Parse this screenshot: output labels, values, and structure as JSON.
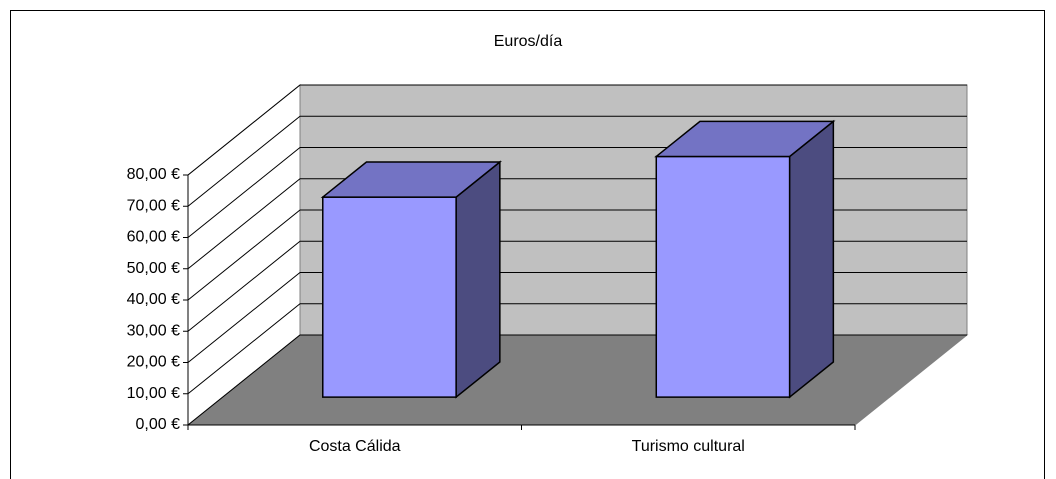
{
  "chart_data": {
    "type": "bar3d",
    "title": "Euros/día",
    "categories": [
      "Costa Cálida",
      "Turismo cultural"
    ],
    "values": [
      64,
      77
    ],
    "color": "#9999ff",
    "ylim": [
      0,
      80
    ],
    "yticks": [
      {
        "value": 0,
        "label": "0,00 €"
      },
      {
        "value": 10,
        "label": "10,00 €"
      },
      {
        "value": 20,
        "label": "20,00 €"
      },
      {
        "value": 30,
        "label": "30,00 €"
      },
      {
        "value": 40,
        "label": "40,00 €"
      },
      {
        "value": 50,
        "label": "50,00 €"
      },
      {
        "value": 60,
        "label": "60,00 €"
      },
      {
        "value": 70,
        "label": "70,00 €"
      },
      {
        "value": 80,
        "label": "80,00 €"
      }
    ],
    "grid": true
  }
}
